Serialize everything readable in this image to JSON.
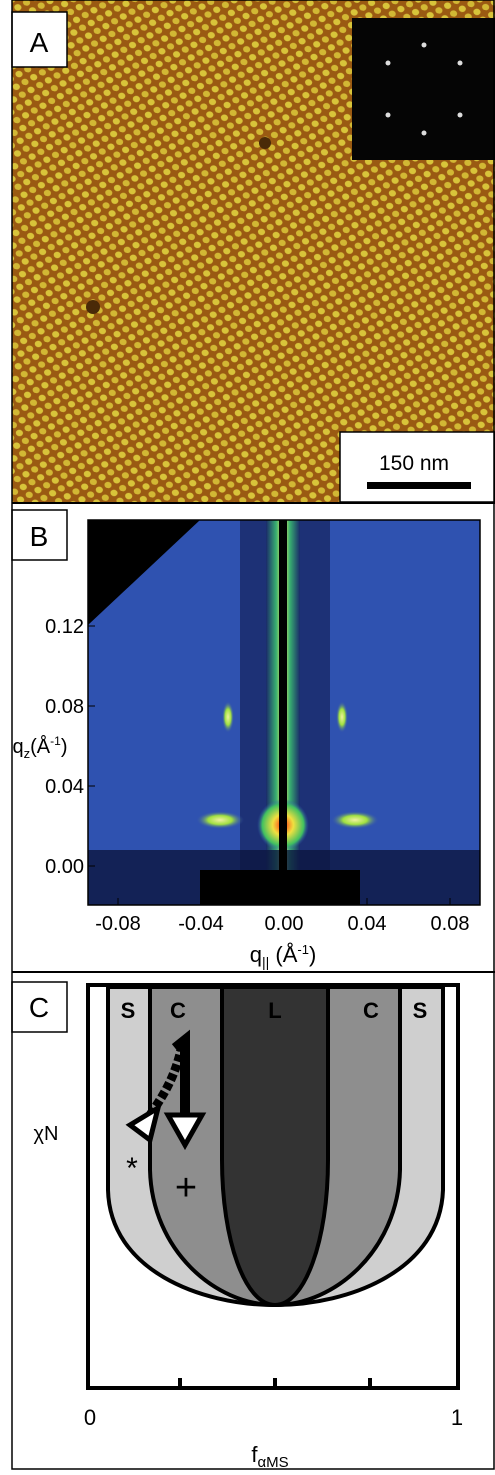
{
  "panel_a": {
    "label": "A",
    "scale_bar": "150 nm"
  },
  "panel_b": {
    "label": "B",
    "x_ticks": [
      "-0.08",
      "-0.04",
      "0.00",
      "0.04",
      "0.08"
    ],
    "y_ticks": [
      "0.00",
      "0.04",
      "0.08",
      "0.12"
    ],
    "x_label": {
      "symbol": "q",
      "subscript": "||",
      "unit": " (Å",
      "superscript": "-1",
      "close": ")"
    },
    "y_label": {
      "symbol": "q",
      "subscript": "z",
      "unit": "(Å",
      "superscript": "-1",
      "close": ")"
    }
  },
  "panel_c": {
    "label": "C",
    "regions": [
      "S",
      "C",
      "L",
      "C",
      "S"
    ],
    "y_label": "χN",
    "x_label": {
      "symbol": "f",
      "subscript": "αMS"
    },
    "x_ticks": [
      "0",
      "1"
    ],
    "markers": [
      "*",
      "+"
    ]
  }
}
